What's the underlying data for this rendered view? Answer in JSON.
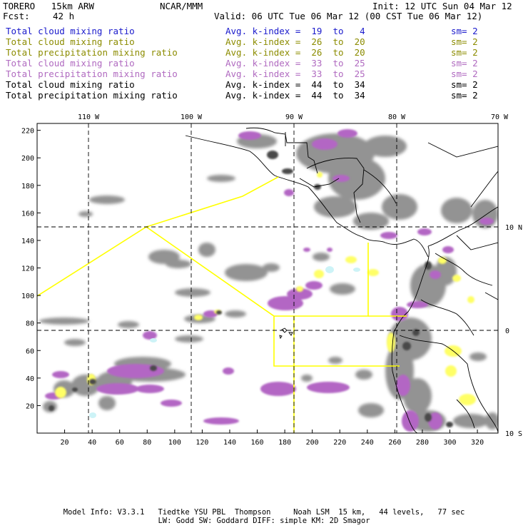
{
  "header": {
    "model": "TORERO   15km ARW",
    "org": "NCAR/MMM",
    "init": "Init: 12 UTC Sun 04 Mar 12",
    "fcst_label": "Fcst:",
    "fcst_value": "42 h",
    "valid": "Valid: 06 UTC Tue 06 Mar 12 (00 CST Tue 06 Mar 12)"
  },
  "legend": [
    {
      "field": "Total cloud mixing ratio",
      "kidx": "Avg. k-index =  19  to   4",
      "sm": "sm= 2",
      "color": "#1a1acc"
    },
    {
      "field": "Total cloud mixing ratio",
      "kidx": "Avg. k-index =  26  to  20",
      "sm": "sm= 2",
      "color": "#8c8c00"
    },
    {
      "field": "Total precipitation mixing ratio",
      "kidx": "Avg. k-index =  26  to  20",
      "sm": "sm= 2",
      "color": "#8c8c00"
    },
    {
      "field": "Total cloud mixing ratio",
      "kidx": "Avg. k-index =  33  to  25",
      "sm": "sm= 2",
      "color": "#b06ac0"
    },
    {
      "field": "Total precipitation mixing ratio",
      "kidx": "Avg. k-index =  33  to  25",
      "sm": "sm= 2",
      "color": "#b06ac0"
    },
    {
      "field": "Total cloud mixing ratio",
      "kidx": "Avg. k-index =  44  to  34",
      "sm": "sm= 2",
      "color": "#000000"
    },
    {
      "field": "Total precipitation mixing ratio",
      "kidx": "Avg. k-index =  44  to  34",
      "sm": "sm= 2",
      "color": "#000000"
    }
  ],
  "map": {
    "lon_labels": [
      "110 W",
      "100 W",
      "90 W",
      "80 W",
      "70 W"
    ],
    "lat_labels": [
      "10 N",
      "0",
      "10 S"
    ],
    "x_ticks": [
      "20",
      "40",
      "60",
      "80",
      "100",
      "120",
      "140",
      "160",
      "180",
      "200",
      "220",
      "240",
      "260",
      "280",
      "300",
      "320"
    ],
    "y_ticks": [
      "20",
      "40",
      "60",
      "80",
      "100",
      "120",
      "140",
      "160",
      "180",
      "200",
      "220"
    ],
    "colors": {
      "gray": "#8e8e8e",
      "darkgray": "#4a4a4a",
      "magenta": "#b366c4",
      "yellow": "#ffff66",
      "cyan": "#cdf3f7",
      "yellow_line": "#ffff00"
    }
  },
  "footer": {
    "line1": "Model Info: V3.3.1   Tiedtke YSU PBL  Thompson     Noah LSM  15 km,   44 levels,   77 sec",
    "line2": "LW: Godd SW: Goddard DIFF: simple KM: 2D Smagor"
  }
}
